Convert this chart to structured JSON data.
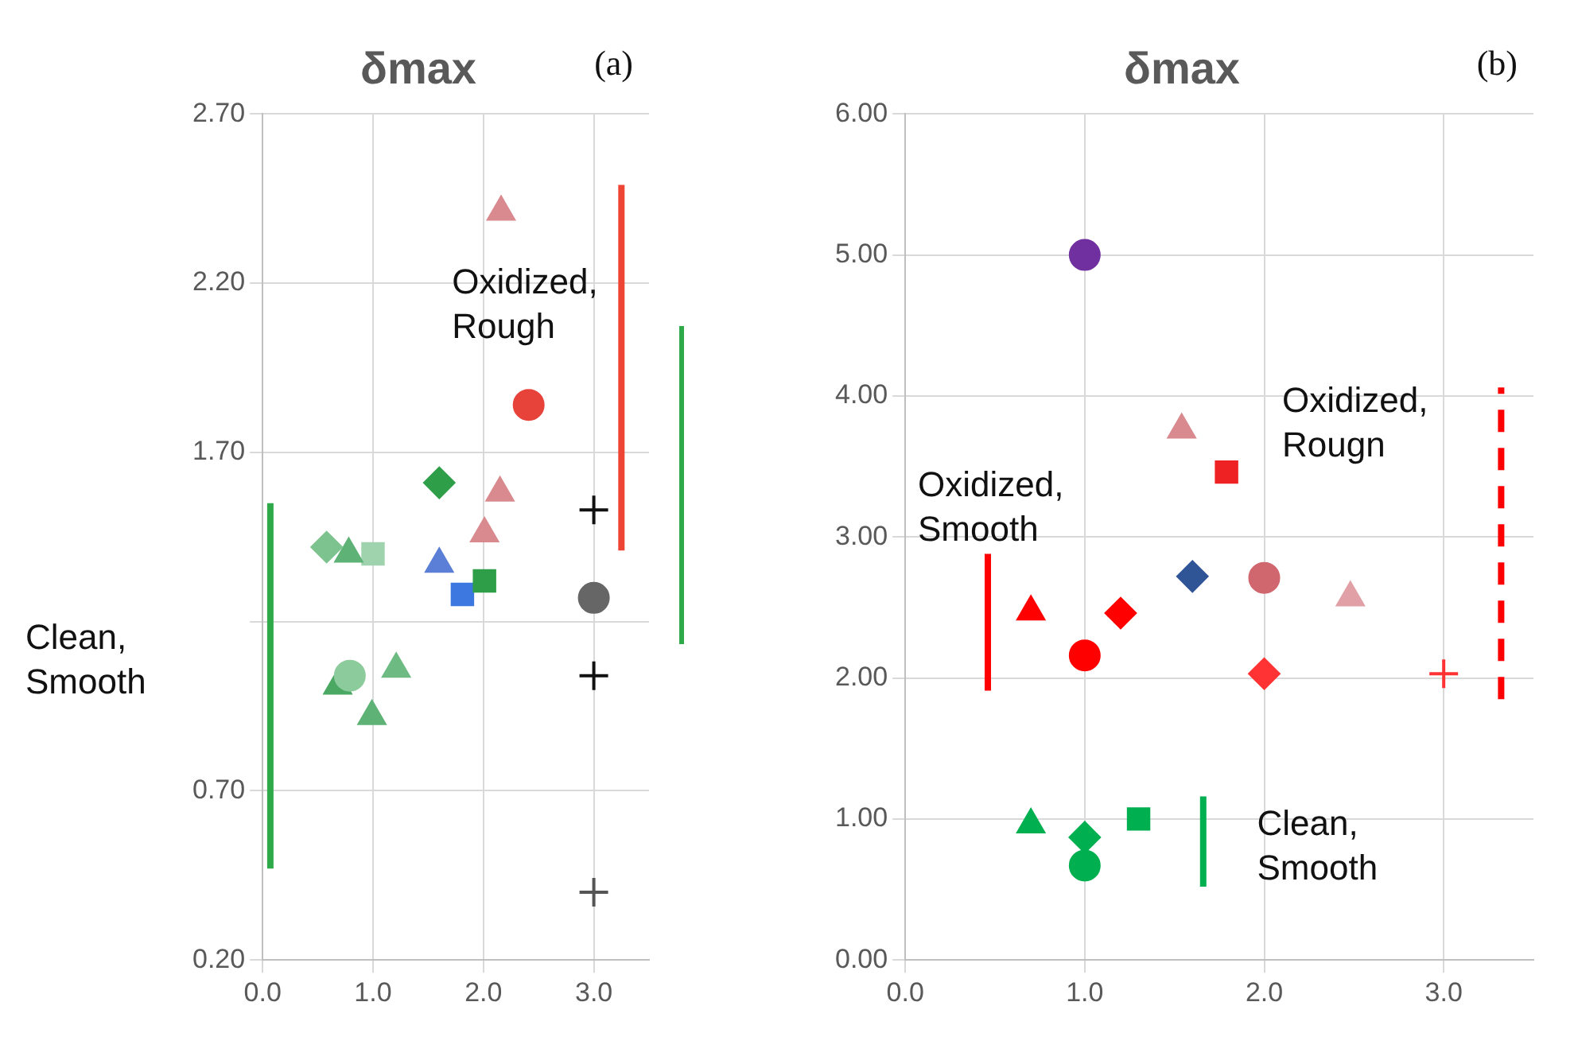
{
  "chart_data": [
    {
      "type": "scatter",
      "title": "δmax",
      "annotations": [
        "(a)",
        "Clean,\nSmooth",
        "Oxidized,\nRough"
      ],
      "xlim": [
        0,
        3.5
      ],
      "xticks": [
        {
          "value": 0,
          "label": "0.0"
        },
        {
          "value": 1,
          "label": "1.0"
        },
        {
          "value": 2,
          "label": "2.0"
        },
        {
          "value": 3,
          "label": "3.0"
        }
      ],
      "ylim": [
        0.2,
        2.7
      ],
      "yticks": [
        {
          "value": 0.2,
          "label": "0.20"
        },
        {
          "value": 0.7,
          "label": "0.70"
        },
        {
          "value": 1.2,
          "label": null
        },
        {
          "value": 1.7,
          "label": "1.70"
        },
        {
          "value": 2.2,
          "label": "2.20"
        },
        {
          "value": 2.7,
          "label": "2.70"
        }
      ],
      "grid": true,
      "legend": false,
      "series": [
        {
          "x": [
            2.16
          ],
          "values": [
            2.41
          ],
          "color": "#d98a8f",
          "marker": "triangle"
        },
        {
          "x": [
            2.41
          ],
          "values": [
            1.84
          ],
          "color": "#e8433a",
          "marker": "circle"
        },
        {
          "x": [
            1.6
          ],
          "values": [
            1.61
          ],
          "color": "#2e9e48",
          "marker": "diamond"
        },
        {
          "x": [
            2.15
          ],
          "values": [
            1.58
          ],
          "color": "#d98a8f",
          "marker": "triangle"
        },
        {
          "x": [
            2.01
          ],
          "values": [
            1.46
          ],
          "color": "#d98a8f",
          "marker": "triangle"
        },
        {
          "x": [
            3.0
          ],
          "values": [
            1.53
          ],
          "color": "#111111",
          "marker": "cross"
        },
        {
          "x": [
            1.6
          ],
          "values": [
            1.37
          ],
          "color": "#5b7fd6",
          "marker": "triangle"
        },
        {
          "x": [
            2.01
          ],
          "values": [
            1.32
          ],
          "color": "#2e9e48",
          "marker": "square"
        },
        {
          "x": [
            1.81
          ],
          "values": [
            1.28
          ],
          "color": "#3c78e0",
          "marker": "square"
        },
        {
          "x": [
            3.0
          ],
          "values": [
            1.27
          ],
          "color": "#666666",
          "marker": "circle"
        },
        {
          "x": [
            0.58
          ],
          "values": [
            1.42
          ],
          "color": "#7cc38f",
          "marker": "diamond"
        },
        {
          "x": [
            0.78
          ],
          "values": [
            1.4
          ],
          "color": "#5fb276",
          "marker": "triangle"
        },
        {
          "x": [
            1.0
          ],
          "values": [
            1.4
          ],
          "color": "#9fd3ae",
          "marker": "square"
        },
        {
          "x": [
            0.79
          ],
          "values": [
            1.04
          ],
          "color": "#8ccb9c",
          "marker": "circle"
        },
        {
          "x": [
            0.68
          ],
          "values": [
            1.01
          ],
          "color": "#4aa863",
          "marker": "triangle"
        },
        {
          "x": [
            1.21
          ],
          "values": [
            1.06
          ],
          "color": "#6dbb82",
          "marker": "triangle"
        },
        {
          "x": [
            0.99
          ],
          "values": [
            0.92
          ],
          "color": "#5fb276",
          "marker": "triangle"
        },
        {
          "x": [
            3.0
          ],
          "values": [
            1.04
          ],
          "color": "#111111",
          "marker": "cross"
        },
        {
          "x": [
            3.0
          ],
          "values": [
            0.4
          ],
          "color": "#555555",
          "marker": "cross"
        },
        {
          "type": "line",
          "x": [
            0.07,
            0.07
          ],
          "values": [
            0.47,
            1.55
          ],
          "color": "#2eaa4a",
          "marker": "none",
          "line_style": "solid"
        },
        {
          "type": "line",
          "x": [
            3.25,
            3.25
          ],
          "values": [
            1.41,
            2.49
          ],
          "color": "#ee4433",
          "marker": "none",
          "line_style": "solid"
        }
      ]
    },
    {
      "type": "scatter",
      "title": "δmax",
      "annotations": [
        "(b)",
        "Oxidized,\nSmooth",
        "Oxidized,\nRougn",
        "Clean,\nSmooth"
      ],
      "xlim": [
        0,
        3.5
      ],
      "xticks": [
        {
          "value": 0,
          "label": "0.0"
        },
        {
          "value": 1,
          "label": "1.0"
        },
        {
          "value": 2,
          "label": "2.0"
        },
        {
          "value": 3,
          "label": "3.0"
        }
      ],
      "ylim": [
        0,
        6
      ],
      "yticks": [
        {
          "value": 0,
          "label": "0.00"
        },
        {
          "value": 1,
          "label": "1.00"
        },
        {
          "value": 2,
          "label": "2.00"
        },
        {
          "value": 3,
          "label": "3.00"
        },
        {
          "value": 4,
          "label": "4.00"
        },
        {
          "value": 5,
          "label": "5.00"
        },
        {
          "value": 6,
          "label": "6.00"
        }
      ],
      "grid": true,
      "legend": false,
      "series": [
        {
          "x": [
            1.0
          ],
          "values": [
            5.0
          ],
          "color": "#7030a0",
          "marker": "circle"
        },
        {
          "x": [
            1.54
          ],
          "values": [
            3.76
          ],
          "color": "#d98a8f",
          "marker": "triangle"
        },
        {
          "x": [
            1.79
          ],
          "values": [
            3.46
          ],
          "color": "#ee2222",
          "marker": "square"
        },
        {
          "x": [
            1.6
          ],
          "values": [
            2.72
          ],
          "color": "#2f5597",
          "marker": "diamond"
        },
        {
          "x": [
            2.0
          ],
          "values": [
            2.71
          ],
          "color": "#d0666e",
          "marker": "circle"
        },
        {
          "x": [
            2.48
          ],
          "values": [
            2.57
          ],
          "color": "#e0a0a6",
          "marker": "triangle"
        },
        {
          "x": [
            0.7
          ],
          "values": [
            2.47
          ],
          "color": "#ff0000",
          "marker": "triangle"
        },
        {
          "x": [
            1.2
          ],
          "values": [
            2.46
          ],
          "color": "#ff0000",
          "marker": "diamond"
        },
        {
          "x": [
            1.0
          ],
          "values": [
            2.16
          ],
          "color": "#ff0000",
          "marker": "circle"
        },
        {
          "x": [
            2.0
          ],
          "values": [
            2.03
          ],
          "color": "#ff3333",
          "marker": "diamond"
        },
        {
          "x": [
            3.0
          ],
          "values": [
            2.03
          ],
          "color": "#ff3333",
          "marker": "cross"
        },
        {
          "x": [
            0.7
          ],
          "values": [
            0.96
          ],
          "color": "#00b050",
          "marker": "triangle"
        },
        {
          "x": [
            1.3
          ],
          "values": [
            1.0
          ],
          "color": "#00b050",
          "marker": "square"
        },
        {
          "x": [
            1.0
          ],
          "values": [
            0.87
          ],
          "color": "#00b050",
          "marker": "diamond"
        },
        {
          "x": [
            1.0
          ],
          "values": [
            0.67
          ],
          "color": "#00b050",
          "marker": "circle"
        },
        {
          "type": "line",
          "x": [
            0.46,
            0.46
          ],
          "values": [
            1.91,
            2.88
          ],
          "color": "#ff0000",
          "marker": "none",
          "line_style": "solid"
        },
        {
          "type": "line",
          "x": [
            1.66,
            1.66
          ],
          "values": [
            0.52,
            1.16
          ],
          "color": "#00b050",
          "marker": "none",
          "line_style": "solid"
        },
        {
          "type": "line",
          "x": [
            3.32,
            3.32
          ],
          "values": [
            1.85,
            4.06
          ],
          "color": "#ff0000",
          "marker": "none",
          "line_style": "dashed"
        }
      ]
    }
  ]
}
